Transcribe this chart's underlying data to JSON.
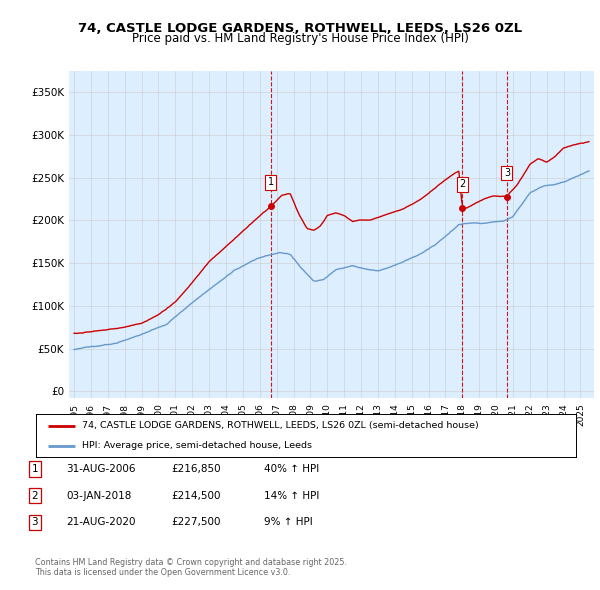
{
  "title_line1": "74, CASTLE LODGE GARDENS, ROTHWELL, LEEDS, LS26 0ZL",
  "title_line2": "Price paid vs. HM Land Registry's House Price Index (HPI)",
  "yticks": [
    0,
    50000,
    100000,
    150000,
    200000,
    250000,
    300000,
    350000
  ],
  "ytick_labels": [
    "£0",
    "£50K",
    "£100K",
    "£150K",
    "£200K",
    "£250K",
    "£300K",
    "£350K"
  ],
  "ylim": [
    -8000,
    375000
  ],
  "xlim_start": 1994.7,
  "xlim_end": 2025.8,
  "red_line_color": "#cc0000",
  "blue_line_color": "#6699cc",
  "blue_fill_color": "#ddeeff",
  "vline_color": "#cc0000",
  "sale_dates": [
    2006.664,
    2018.005,
    2020.644
  ],
  "sale_prices": [
    216850,
    214500,
    227500
  ],
  "sale_labels": [
    "1",
    "2",
    "3"
  ],
  "legend_label_red": "74, CASTLE LODGE GARDENS, ROTHWELL, LEEDS, LS26 0ZL (semi-detached house)",
  "legend_label_blue": "HPI: Average price, semi-detached house, Leeds",
  "table_data": [
    [
      "1",
      "31-AUG-2006",
      "£216,850",
      "40% ↑ HPI"
    ],
    [
      "2",
      "03-JAN-2018",
      "£214,500",
      "14% ↑ HPI"
    ],
    [
      "3",
      "21-AUG-2020",
      "£227,500",
      "9% ↑ HPI"
    ]
  ],
  "footnote": "Contains HM Land Registry data © Crown copyright and database right 2025.\nThis data is licensed under the Open Government Licence v3.0.",
  "background_color": "#ffffff",
  "grid_color": "#cccccc"
}
